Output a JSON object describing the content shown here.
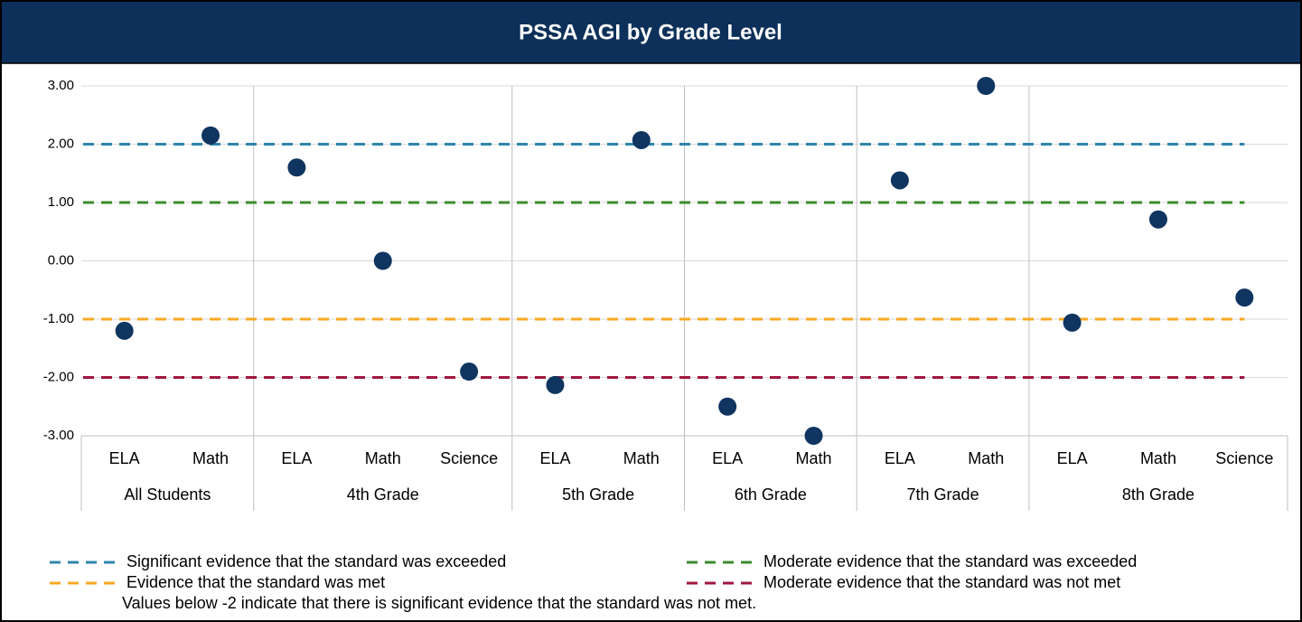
{
  "chart_data": {
    "type": "scatter",
    "title": "PSSA AGI by Grade Level",
    "groups": [
      {
        "name": "All Students",
        "categories": [
          "ELA",
          "Math"
        ]
      },
      {
        "name": "4th Grade",
        "categories": [
          "ELA",
          "Math",
          "Science"
        ]
      },
      {
        "name": "5th Grade",
        "categories": [
          "ELA",
          "Math"
        ]
      },
      {
        "name": "6th Grade",
        "categories": [
          "ELA",
          "Math"
        ]
      },
      {
        "name": "7th Grade",
        "categories": [
          "ELA",
          "Math"
        ]
      },
      {
        "name": "8th Grade",
        "categories": [
          "ELA",
          "Math",
          "Science"
        ]
      }
    ],
    "values": [
      -1.2,
      2.15,
      1.6,
      0.0,
      -1.9,
      -2.13,
      2.07,
      -2.5,
      -3.0,
      1.38,
      3.0,
      -1.06,
      0.71,
      -0.63
    ],
    "color": "#0f3560",
    "ylim": [
      -3,
      3
    ],
    "yticks": [
      {
        "value": -3,
        "label": "-3.00"
      },
      {
        "value": -2,
        "label": "-2.00"
      },
      {
        "value": -1,
        "label": "-1.00"
      },
      {
        "value": 0,
        "label": "0.00"
      },
      {
        "value": 1,
        "label": "1.00"
      },
      {
        "value": 2,
        "label": "2.00"
      },
      {
        "value": 3,
        "label": "3.00"
      }
    ],
    "grid": true,
    "reference_lines": [
      {
        "name": "Significant evidence that the standard was exceeded",
        "color": "#2e86ab",
        "value": 2
      },
      {
        "name": "Moderate evidence that the standard was exceeded",
        "color": "#3d8b2f",
        "value": 1
      },
      {
        "name": "Evidence that the standard was met",
        "color": "#f7a823",
        "value": -1
      },
      {
        "name": "Moderate evidence that the standard was not met",
        "color": "#a0173f",
        "value": -2
      }
    ],
    "note": "Values below -2 indicate that there is significant evidence that the standard was not met."
  }
}
